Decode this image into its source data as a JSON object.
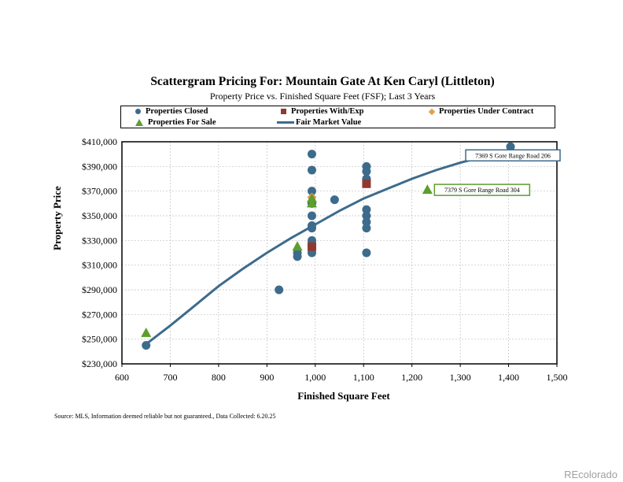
{
  "chart_data": {
    "type": "scatter",
    "title": "Scattergram Pricing For: Mountain Gate At Ken Caryl (Littleton)",
    "subtitle": "Property Price vs. Finished Square Feet (FSF); Last 3 Years",
    "xlabel": "Finished Square Feet",
    "ylabel": "Property Price",
    "xlim": [
      600,
      1500
    ],
    "ylim": [
      230000,
      410000
    ],
    "x_ticks": [
      600,
      700,
      800,
      900,
      1000,
      1100,
      1200,
      1300,
      1400,
      1500
    ],
    "x_tick_labels": [
      "600",
      "700",
      "800",
      "900",
      "1,000",
      "1,100",
      "1,200",
      "1,300",
      "1,400",
      "1,500"
    ],
    "y_ticks": [
      230000,
      250000,
      270000,
      290000,
      310000,
      330000,
      350000,
      370000,
      390000,
      410000
    ],
    "y_tick_labels": [
      "$230,000",
      "$250,000",
      "$270,000",
      "$290,000",
      "$310,000",
      "$330,000",
      "$350,000",
      "$370,000",
      "$390,000",
      "$410,000"
    ],
    "grid": true,
    "legend": [
      {
        "label": "Properties Closed",
        "symbol": "circle",
        "color": "#3d6b8c"
      },
      {
        "label": "Properties With/Exp",
        "symbol": "square",
        "color": "#8e3a33"
      },
      {
        "label": "Properties Under Contract",
        "symbol": "diamond",
        "color": "#e3a04b"
      },
      {
        "label": "Properties For Sale",
        "symbol": "triangle",
        "color": "#5d9e2f"
      },
      {
        "label": "Fair Market Value",
        "symbol": "line",
        "color": "#3d6b8c"
      }
    ],
    "series": [
      {
        "name": "Properties Closed",
        "marker": "circle",
        "color": "#3d6b8c",
        "points": [
          [
            650,
            245000
          ],
          [
            925,
            290000
          ],
          [
            963,
            317000
          ],
          [
            963,
            320000
          ],
          [
            993,
            400000
          ],
          [
            993,
            387000
          ],
          [
            993,
            370000
          ],
          [
            993,
            360000
          ],
          [
            993,
            350000
          ],
          [
            993,
            342000
          ],
          [
            993,
            340000
          ],
          [
            993,
            330000
          ],
          [
            993,
            325000
          ],
          [
            993,
            320000
          ],
          [
            1040,
            363000
          ],
          [
            1106,
            390000
          ],
          [
            1106,
            386000
          ],
          [
            1106,
            380000
          ],
          [
            1106,
            355000
          ],
          [
            1106,
            350000
          ],
          [
            1106,
            345000
          ],
          [
            1106,
            340000
          ],
          [
            1106,
            320000
          ],
          [
            1404,
            406000
          ]
        ]
      },
      {
        "name": "Properties With/Exp",
        "marker": "square",
        "color": "#8e3a33",
        "points": [
          [
            993,
            325000
          ],
          [
            1106,
            376000
          ]
        ]
      },
      {
        "name": "Properties Under Contract",
        "marker": "diamond",
        "color": "#e3a04b",
        "points": [
          [
            993,
            365000
          ]
        ]
      },
      {
        "name": "Properties For Sale",
        "marker": "triangle",
        "color": "#5d9e2f",
        "points": [
          [
            650,
            255000
          ],
          [
            963,
            325000
          ],
          [
            993,
            364000
          ],
          [
            993,
            360000
          ],
          [
            1232,
            371000
          ]
        ]
      },
      {
        "name": "Fair Market Value",
        "type": "line",
        "color": "#3d6b8c",
        "points": [
          [
            650,
            246000
          ],
          [
            700,
            261000
          ],
          [
            750,
            277000
          ],
          [
            800,
            293000
          ],
          [
            850,
            307000
          ],
          [
            900,
            320000
          ],
          [
            950,
            332000
          ],
          [
            1000,
            343000
          ],
          [
            1050,
            354000
          ],
          [
            1100,
            364000
          ],
          [
            1150,
            372000
          ],
          [
            1200,
            380000
          ],
          [
            1250,
            387000
          ],
          [
            1300,
            393000
          ],
          [
            1350,
            398000
          ],
          [
            1400,
            403000
          ]
        ]
      }
    ],
    "annotations": [
      {
        "text": "7369 S Gore Range Road 206",
        "x": 1404,
        "y": 406000,
        "border_color": "#3d6b8c"
      },
      {
        "text": "7379 S Gore Range Road 304",
        "x": 1232,
        "y": 371000,
        "border_color": "#5d9e2f"
      }
    ]
  },
  "footer": {
    "source": "Source: MLS, Information deemed reliable but not guaranteed., Data Collected: 6.20.25",
    "watermark": "REcolorado"
  }
}
